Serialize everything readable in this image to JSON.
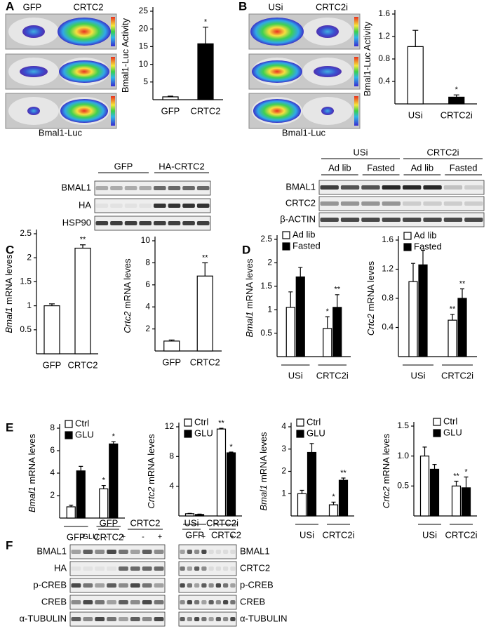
{
  "panel_letters": [
    "A",
    "B",
    "C",
    "D",
    "E",
    "F"
  ],
  "imaging": [
    {
      "labels": [
        "GFP",
        "CRTC2"
      ],
      "caption": "Bmal1-Luc"
    },
    {
      "labels": [
        "USi",
        "CRTC2i"
      ],
      "caption": "Bmal1-Luc"
    }
  ],
  "blots": [
    {
      "groups": [
        "GFP",
        "HA-CRTC2"
      ],
      "rows": [
        "BMAL1",
        "HA",
        "HSP90"
      ]
    },
    {
      "groups": [
        "USi",
        "CRTC2i"
      ],
      "subgroups": [
        "Ad lib",
        "Fasted",
        "Ad lib",
        "Fasted"
      ],
      "rows": [
        "BMAL1",
        "CRTC2",
        "β-ACTIN"
      ]
    },
    {
      "groups": [
        "GFP",
        "CRTC2"
      ],
      "treatment": "GLU",
      "signs": [
        "-",
        "+",
        "-",
        "+"
      ],
      "rows": [
        "BMAL1",
        "HA",
        "p-CREB",
        "CREB",
        "α-TUBULIN"
      ]
    },
    {
      "groups": [
        "USi",
        "CRTC2i"
      ],
      "signs": [
        "-",
        "+",
        "-",
        "+"
      ],
      "rows": [
        "BMAL1",
        "CRTC2",
        "p-CREB",
        "CREB",
        "α-TUBULIN"
      ]
    }
  ],
  "chart_data": [
    {
      "type": "bar",
      "ylabel": "Bmal1-Luc Activity",
      "categories": [
        "GFP",
        "CRTC2"
      ],
      "values": [
        0.8,
        15.8
      ],
      "errors": [
        0.2,
        4.7
      ],
      "colors": [
        "#ffffff",
        "#000000"
      ],
      "significance": [
        null,
        "*"
      ],
      "ylim": [
        0,
        25
      ],
      "yticks": [
        5,
        10,
        15,
        20,
        25
      ]
    },
    {
      "type": "bar",
      "ylabel": "Bmal1-Luc Activity",
      "categories": [
        "USi",
        "CRTC2i"
      ],
      "values": [
        1.02,
        0.12
      ],
      "errors": [
        0.29,
        0.04
      ],
      "colors": [
        "#ffffff",
        "#000000"
      ],
      "significance": [
        null,
        "*"
      ],
      "ylim": [
        0,
        1.6
      ],
      "yticks": [
        0.4,
        0.8,
        1.2,
        1.6
      ]
    },
    {
      "type": "bar",
      "ylabel_gene": "Bmal1",
      "ylabel": "mRNA leves",
      "categories": [
        "GFP",
        "CRTC2"
      ],
      "values": [
        1.0,
        2.2
      ],
      "errors": [
        0.04,
        0.07
      ],
      "colors": [
        "#ffffff",
        "#ffffff"
      ],
      "significance": [
        null,
        "**"
      ],
      "ylim": [
        0,
        2.5
      ],
      "yticks": [
        0.5,
        1,
        1.5,
        2,
        2.5
      ]
    },
    {
      "type": "bar",
      "ylabel_gene": "Crtc2",
      "ylabel": "mRNA leves",
      "categories": [
        "GFP",
        "CRTC2"
      ],
      "values": [
        0.9,
        6.8
      ],
      "errors": [
        0.1,
        1.2
      ],
      "colors": [
        "#ffffff",
        "#ffffff"
      ],
      "significance": [
        null,
        "**"
      ],
      "ylim": [
        0,
        10
      ],
      "yticks": [
        2,
        4,
        6,
        8,
        10
      ]
    },
    {
      "type": "grouped_bar",
      "ylabel_gene": "Bmal1",
      "ylabel": "mRNA leves",
      "categories": [
        "USi",
        "CRTC2i"
      ],
      "legend": "top-left",
      "ylim": [
        0,
        2.5
      ],
      "yticks": [
        0.5,
        1,
        1.5,
        2,
        2.5
      ],
      "series": [
        {
          "name": "Ad lib",
          "color": "#ffffff",
          "values": [
            1.05,
            0.6
          ],
          "errors": [
            0.33,
            0.25
          ],
          "significance": [
            null,
            "*"
          ]
        },
        {
          "name": "Fasted",
          "color": "#000000",
          "values": [
            1.7,
            1.05
          ],
          "errors": [
            0.2,
            0.27
          ],
          "significance": [
            null,
            "**"
          ]
        }
      ]
    },
    {
      "type": "grouped_bar",
      "ylabel_gene": "Crtc2",
      "ylabel": "mRNA leves",
      "categories": [
        "USi",
        "CRTC2i"
      ],
      "legend": "top-left",
      "ylim": [
        0,
        1.6
      ],
      "yticks": [
        0.4,
        0.8,
        1.2,
        1.6
      ],
      "series": [
        {
          "name": "Ad lib",
          "color": "#ffffff",
          "values": [
            1.03,
            0.5
          ],
          "errors": [
            0.25,
            0.08
          ],
          "significance": [
            null,
            "**"
          ]
        },
        {
          "name": "Fasted",
          "color": "#000000",
          "values": [
            1.26,
            0.8
          ],
          "errors": [
            0.2,
            0.13
          ],
          "significance": [
            null,
            "**"
          ]
        }
      ]
    },
    {
      "type": "grouped_bar",
      "ylabel_gene": "Bmal1",
      "ylabel": "mRNA leves",
      "categories": [
        "GFP",
        "CRTC2"
      ],
      "legend": "top-left",
      "ylim": [
        0,
        8
      ],
      "yticks": [
        2,
        4,
        6,
        8
      ],
      "series": [
        {
          "name": "Ctrl",
          "color": "#ffffff",
          "values": [
            1.0,
            2.6
          ],
          "errors": [
            0.15,
            0.3
          ],
          "significance": [
            null,
            "*"
          ]
        },
        {
          "name": "GLU",
          "color": "#000000",
          "values": [
            4.2,
            6.6
          ],
          "errors": [
            0.4,
            0.2
          ],
          "significance": [
            null,
            "*"
          ]
        }
      ]
    },
    {
      "type": "grouped_bar",
      "ylabel_gene": "Crtc2",
      "ylabel": "mRNA leves",
      "categories": [
        "GFP",
        "CRTC2"
      ],
      "legend": "top-left",
      "ylim": [
        0,
        12
      ],
      "yticks": [
        4,
        8,
        12
      ],
      "series": [
        {
          "name": "Ctrl",
          "color": "#ffffff",
          "values": [
            0.3,
            11.7
          ],
          "errors": [
            0.05,
            0.1
          ],
          "significance": [
            null,
            "**"
          ]
        },
        {
          "name": "GLU",
          "color": "#000000",
          "values": [
            0.2,
            8.5
          ],
          "errors": [
            0.05,
            0.1
          ],
          "significance": [
            null,
            "*"
          ]
        }
      ]
    },
    {
      "type": "grouped_bar",
      "ylabel_gene": "Bmal1",
      "ylabel": "mRNA leves",
      "categories": [
        "USi",
        "CRTC2i"
      ],
      "legend": "top-left",
      "ylim": [
        0,
        4
      ],
      "yticks": [
        1,
        2,
        3,
        4
      ],
      "series": [
        {
          "name": "Ctrl",
          "color": "#ffffff",
          "values": [
            1.0,
            0.5
          ],
          "errors": [
            0.15,
            0.12
          ],
          "significance": [
            null,
            "*"
          ]
        },
        {
          "name": "GLU",
          "color": "#000000",
          "values": [
            2.85,
            1.6
          ],
          "errors": [
            0.4,
            0.1
          ],
          "significance": [
            null,
            "**"
          ]
        }
      ]
    },
    {
      "type": "grouped_bar",
      "ylabel_gene": "Crtc2",
      "ylabel": "mRNA leves",
      "categories": [
        "USi",
        "CRTC2i"
      ],
      "legend": "top-right",
      "ylim": [
        0,
        1.5
      ],
      "yticks": [
        0.5,
        {
          "value": 1,
          "label": "1.0"
        },
        1.5
      ],
      "series": [
        {
          "name": "Ctrl",
          "color": "#ffffff",
          "values": [
            1.0,
            0.5
          ],
          "errors": [
            0.15,
            0.08
          ],
          "significance": [
            null,
            "**"
          ]
        },
        {
          "name": "GLU",
          "color": "#000000",
          "values": [
            0.78,
            0.47
          ],
          "errors": [
            0.08,
            0.18
          ],
          "significance": [
            null,
            "*"
          ]
        }
      ]
    }
  ]
}
